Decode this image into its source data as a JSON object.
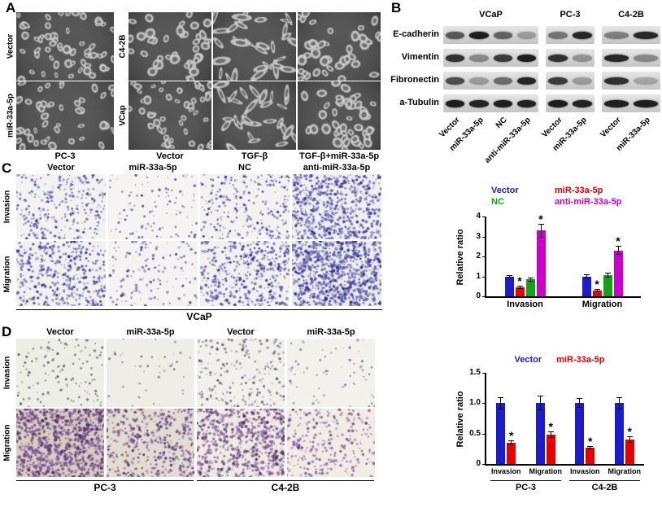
{
  "figure": {
    "panel_a": {
      "label": "A",
      "left_row_labels": [
        "Vector",
        "miR-33a-5p"
      ],
      "left_bottom_label": "PC-3",
      "right_row_labels": [
        "C4-2B",
        "VCap"
      ],
      "right_col_labels": [
        "Vector",
        "TGF-β",
        "TGF-β+miR-33a-5p"
      ]
    },
    "panel_b": {
      "label": "B",
      "groups": [
        {
          "name": "VCaP",
          "lanes": [
            "Vector",
            "miR-33a-5p",
            "NC",
            "anti-miR-33a-5p"
          ]
        },
        {
          "name": "PC-3",
          "lanes": [
            "Vector",
            "miR-33a-5p"
          ]
        },
        {
          "name": "C4-2B",
          "lanes": [
            "Vector",
            "miR-33a-5p"
          ]
        }
      ],
      "proteins": [
        {
          "name": "E-cadherin",
          "bands": [
            [
              0.65,
              0.95,
              0.6,
              0.3
            ],
            [
              0.5,
              0.9
            ],
            [
              0.45,
              0.9
            ]
          ]
        },
        {
          "name": "Vimentin",
          "bands": [
            [
              0.85,
              0.4,
              0.8,
              0.95
            ],
            [
              0.85,
              0.35
            ],
            [
              0.9,
              0.4
            ]
          ]
        },
        {
          "name": "Fibronectin",
          "bands": [
            [
              0.7,
              0.3,
              0.55,
              0.9
            ],
            [
              0.8,
              0.3
            ],
            [
              0.85,
              0.25
            ]
          ]
        },
        {
          "name": "a-Tubulin",
          "bands": [
            [
              0.95,
              0.92,
              0.95,
              0.93
            ],
            [
              0.95,
              0.93
            ],
            [
              0.94,
              0.95
            ]
          ]
        }
      ]
    },
    "panel_c": {
      "label": "C",
      "col_labels": [
        "Vector",
        "miR-33a-5p",
        "NC",
        "anti-miR-33a-5p"
      ],
      "row_labels": [
        "Invasion",
        "Migration"
      ],
      "bottom_label": "VCaP"
    },
    "panel_d": {
      "label": "D",
      "col_labels": [
        "Vector",
        "miR-33a-5p",
        "Vector",
        "miR-33a-5p"
      ],
      "row_labels": [
        "Invasion",
        "Migration"
      ],
      "bottom_labels": [
        "PC-3",
        "C4-2B"
      ]
    }
  },
  "chart_data": [
    {
      "type": "bar",
      "title": "",
      "xlabel": "",
      "ylabel": "Relative ratio",
      "ylim": [
        0,
        4
      ],
      "yticks": [
        {
          "v": 0,
          "label": "0"
        },
        {
          "v": 1,
          "label": "1"
        },
        {
          "v": 2,
          "label": "2"
        },
        {
          "v": 3,
          "label": "3"
        },
        {
          "v": 4,
          "label": "4"
        }
      ],
      "categories": [
        "Invasion",
        "Migration"
      ],
      "series": [
        {
          "name": "Vector",
          "color": "#1c1ccc",
          "values": [
            1.0,
            1.0
          ],
          "errors": [
            0.08,
            0.1
          ],
          "sig": [
            false,
            false
          ]
        },
        {
          "name": "miR-33a-5p",
          "color": "#e60000",
          "values": [
            0.45,
            0.3
          ],
          "errors": [
            0.07,
            0.05
          ],
          "sig": [
            true,
            true
          ]
        },
        {
          "name": "NC",
          "color": "#18a018",
          "values": [
            0.85,
            1.05
          ],
          "errors": [
            0.1,
            0.13
          ],
          "sig": [
            false,
            false
          ]
        },
        {
          "name": "anti-miR-33a-5p",
          "color": "#cc00cc",
          "values": [
            3.3,
            2.3
          ],
          "errors": [
            0.35,
            0.22
          ],
          "sig": [
            true,
            true
          ]
        }
      ],
      "legend_position": "top",
      "grid": false
    },
    {
      "type": "bar",
      "title": "",
      "xlabel": "",
      "ylabel": "Relative ratio",
      "ylim": [
        0,
        1.5
      ],
      "yticks": [
        {
          "v": 0,
          "label": "0"
        },
        {
          "v": 0.5,
          "label": "0.5"
        },
        {
          "v": 1.0,
          "label": "1.0"
        },
        {
          "v": 1.5,
          "label": "1.5"
        }
      ],
      "categories": [
        "Invasion",
        "Migration",
        "Invasion",
        "Migration"
      ],
      "group_labels": [
        "PC-3",
        "C4-2B"
      ],
      "series": [
        {
          "name": "Vector",
          "color": "#1c1ccc",
          "values": [
            1.0,
            1.0,
            1.0,
            1.0
          ],
          "errors": [
            0.1,
            0.12,
            0.08,
            0.1
          ],
          "sig": [
            false,
            false,
            false,
            false
          ]
        },
        {
          "name": "miR-33a-5p",
          "color": "#e60000",
          "values": [
            0.35,
            0.48,
            0.27,
            0.4
          ],
          "errors": [
            0.04,
            0.05,
            0.03,
            0.05
          ],
          "sig": [
            true,
            true,
            true,
            true
          ]
        }
      ],
      "legend_position": "top",
      "grid": false
    }
  ]
}
